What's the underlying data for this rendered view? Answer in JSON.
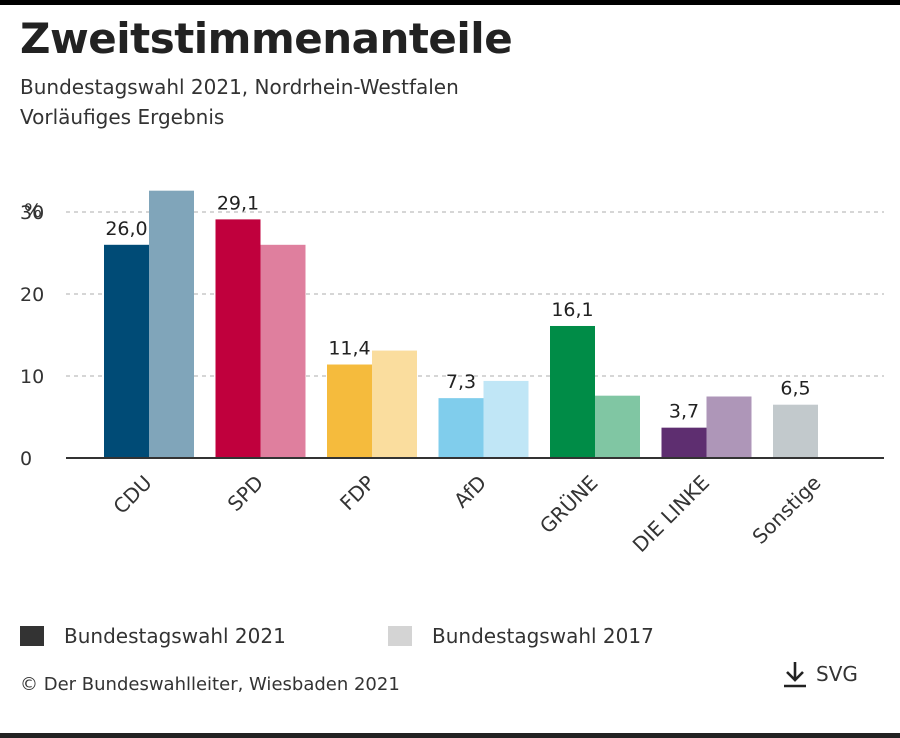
{
  "header": {
    "title": "Zweitstimmenanteile",
    "subtitle_line1": "Bundestagswahl 2021, Nordrhein-Westfalen",
    "subtitle_line2": "Vorläufiges Ergebnis"
  },
  "legend": {
    "item1": "Bundestagswahl 2021",
    "item2": "Bundestagswahl 2017",
    "item1_color": "#333333",
    "item2_color": "#d4d4d4"
  },
  "footer": {
    "source": "© Der Bundeswahlleiter, Wiesbaden 2021",
    "download_label": "SVG",
    "download_icon": "download-arrow-icon"
  },
  "chart_data": {
    "type": "bar",
    "categories": [
      "CDU",
      "SPD",
      "FDP",
      "AfD",
      "GRÜNE",
      "DIE LINKE",
      "Sonstige"
    ],
    "series": [
      {
        "name": "Bundestagswahl 2021",
        "values": [
          26.0,
          29.1,
          11.4,
          7.3,
          16.1,
          3.7,
          6.5
        ],
        "labels": [
          "26,0",
          "29,1",
          "11,4",
          "7,3",
          "16,1",
          "3,7",
          "6,5"
        ],
        "colors": [
          "#004b76",
          "#c0003d",
          "#f5bb3d",
          "#80cdec",
          "#008c47",
          "#5e2e70",
          "#c2c9cc"
        ]
      },
      {
        "name": "Bundestagswahl 2017",
        "values": [
          32.6,
          26.0,
          13.1,
          9.4,
          7.6,
          7.5,
          null
        ],
        "colors": [
          "#80a5ba",
          "#df7f9e",
          "#fadd9e",
          "#c0e6f6",
          "#80c6a3",
          "#ae96b8",
          "#e0e4e5"
        ]
      }
    ],
    "yticks": [
      0,
      10,
      20,
      30
    ],
    "ytick_labels": [
      "0",
      "10",
      "20",
      "30"
    ],
    "yunit": "%",
    "ylim": [
      0,
      30
    ],
    "grid": true
  }
}
